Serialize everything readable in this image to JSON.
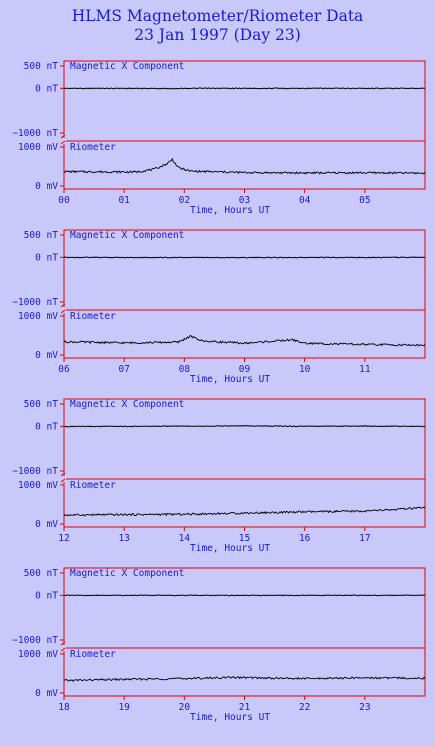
{
  "header": {
    "title": "HLMS Magnetometer/Riometer Data",
    "subtitle": "23 Jan 1997 (Day 23)"
  },
  "colors": {
    "background": "#c8c8fa",
    "frame": "#e60000",
    "text": "#1a1ad2",
    "trace": "#000000"
  },
  "chart_data": {
    "type": "line",
    "title": "HLMS Magnetometer/Riometer Data",
    "subtitle": "23 Jan 1997 (Day 23)",
    "xlabel": "Time, Hours UT",
    "magnetometer": {
      "label": "Magnetic X Component",
      "unit": "nT",
      "ylim": [
        -1000,
        500
      ],
      "tick_labels": [
        "500 nT",
        "0 nT",
        "−1000 nT"
      ]
    },
    "riometer": {
      "label": "Riometer",
      "unit": "mV",
      "ylim": [
        0,
        1000
      ],
      "tick_labels": [
        "1000 mV",
        "0 mV"
      ]
    },
    "panels": [
      {
        "hour_start": 0,
        "tick_labels": [
          "00",
          "01",
          "02",
          "03",
          "04",
          "05"
        ],
        "mag": {
          "x": [
            0,
            1,
            1.8,
            2,
            3,
            4,
            5,
            6
          ],
          "y": [
            0,
            0,
            -5,
            0,
            0,
            0,
            0,
            0
          ]
        },
        "rio": {
          "x": [
            0,
            1,
            1.2,
            1.5,
            1.7,
            1.8,
            1.9,
            2.1,
            3,
            4,
            5,
            6
          ],
          "y": [
            370,
            360,
            360,
            430,
            560,
            680,
            470,
            380,
            345,
            335,
            340,
            330
          ]
        }
      },
      {
        "hour_start": 6,
        "tick_labels": [
          "06",
          "07",
          "08",
          "09",
          "10",
          "11"
        ],
        "mag": {
          "x": [
            6,
            8.5,
            12
          ],
          "y": [
            0,
            -5,
            0
          ]
        },
        "rio": {
          "x": [
            6,
            7,
            7.9,
            8.1,
            8.3,
            9,
            9.8,
            10,
            11,
            12
          ],
          "y": [
            340,
            310,
            330,
            480,
            360,
            300,
            390,
            300,
            270,
            250
          ]
        }
      },
      {
        "hour_start": 12,
        "tick_labels": [
          "12",
          "13",
          "14",
          "15",
          "16",
          "17"
        ],
        "mag": {
          "x": [
            12,
            14,
            15,
            16,
            17,
            18
          ],
          "y": [
            -5,
            5,
            10,
            0,
            5,
            0
          ]
        },
        "rio": {
          "x": [
            12,
            13,
            14,
            15,
            16,
            17,
            17.5,
            18
          ],
          "y": [
            230,
            240,
            250,
            280,
            310,
            330,
            370,
            420
          ]
        }
      },
      {
        "hour_start": 18,
        "tick_labels": [
          "18",
          "19",
          "20",
          "21",
          "22",
          "23"
        ],
        "mag": {
          "x": [
            18,
            24
          ],
          "y": [
            0,
            0
          ]
        },
        "rio": {
          "x": [
            18,
            19,
            20,
            20.8,
            21.5,
            22,
            23,
            24
          ],
          "y": [
            320,
            350,
            370,
            400,
            380,
            370,
            390,
            380
          ]
        }
      }
    ]
  }
}
